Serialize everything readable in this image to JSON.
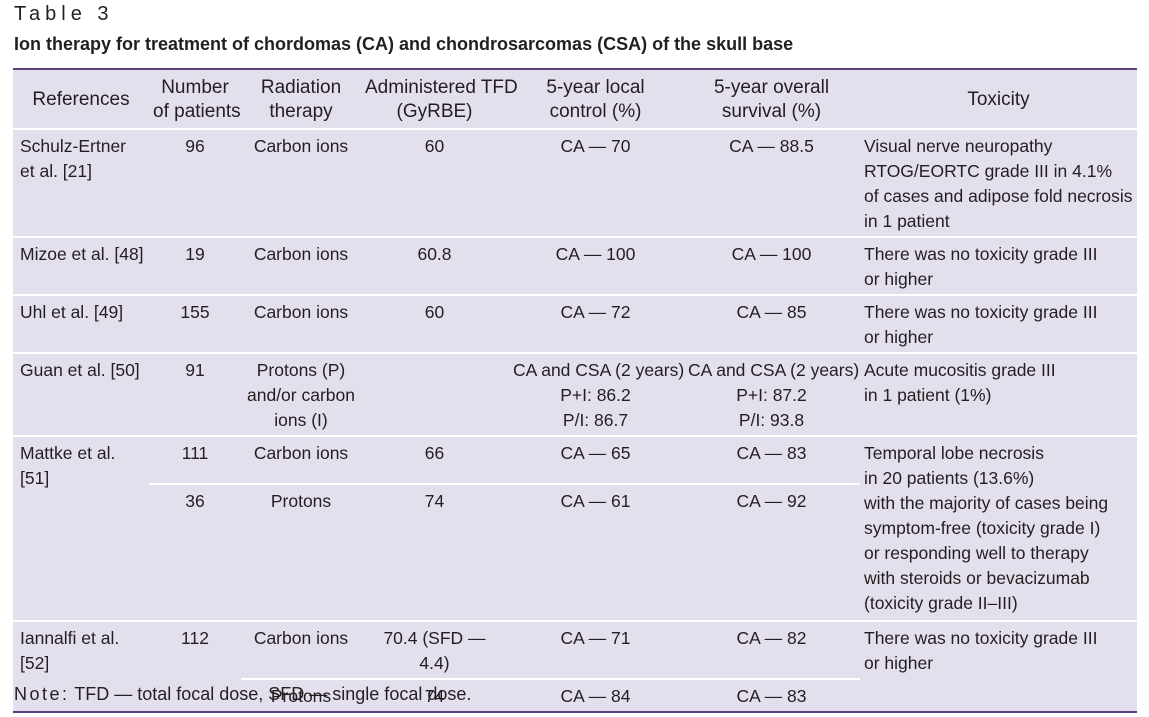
{
  "label": "Table 3",
  "title": "Ion therapy for treatment of chordomas (CA) and chondrosarcomas (CSA) of the skull base",
  "headers": [
    [
      "References"
    ],
    [
      "Number",
      "of patients"
    ],
    [
      "Radiation",
      "therapy"
    ],
    [
      "Administered TFD",
      "(GyRBE)"
    ],
    [
      "5-year local",
      "control (%)"
    ],
    [
      "5-year overall",
      "survival (%)"
    ],
    [
      "Toxicity"
    ]
  ],
  "rows": [
    {
      "ref": [
        "Schulz-Ertner",
        "et al. [21]"
      ],
      "n": "96",
      "rt": [
        "Carbon ions"
      ],
      "tfd": "60",
      "lc": [
        "CA — 70"
      ],
      "os": [
        "CA — 88.5"
      ],
      "tox": [
        "Visual nerve neuropathy",
        "RTOG/EORTC grade III in 4.1%",
        "of cases and adipose fold necrosis",
        "in 1 patient"
      ]
    },
    {
      "ref": [
        "Mizoe et al. [48]"
      ],
      "n": "19",
      "rt": [
        "Carbon ions"
      ],
      "tfd": "60.8",
      "lc": [
        "CA — 100"
      ],
      "os": [
        "CA — 100"
      ],
      "tox": [
        "There was no toxicity grade III",
        "or higher"
      ]
    },
    {
      "ref": [
        "Uhl et al. [49]"
      ],
      "n": "155",
      "rt": [
        "Carbon ions"
      ],
      "tfd": "60",
      "lc": [
        "CA — 72"
      ],
      "os": [
        "CA — 85"
      ],
      "tox": [
        "There was no toxicity grade III",
        "or higher"
      ]
    },
    {
      "ref": [
        "Guan et al. [50]"
      ],
      "n": "91",
      "rt": [
        "Protons (P)",
        "and/or carbon",
        "ions (I)"
      ],
      "tfd": "",
      "lc": [
        "CA and CSA (2 years)",
        "P+I: 86.2",
        "P/I: 86.7"
      ],
      "os": [
        "CA and CSA (2 years)",
        "P+I: 87.2",
        "P/I: 93.8"
      ],
      "tox": [
        "Acute mucositis grade III",
        "in 1 patient (1%)"
      ]
    }
  ],
  "mattke": {
    "ref": "Mattke et al. [51]",
    "sub": [
      {
        "n": "111",
        "rt": "Carbon ions",
        "tfd": "66",
        "lc": "CA — 65",
        "os": "CA — 83"
      },
      {
        "n": "36",
        "rt": "Protons",
        "tfd": "74",
        "lc": "CA — 61",
        "os": "CA — 92"
      }
    ],
    "tox": [
      "Temporal lobe necrosis",
      "in 20 patients (13.6%)",
      "with the majority of cases being",
      "symptom-free (toxicity grade I)",
      "or responding well to therapy",
      "with steroids or bevacizumab",
      "(toxicity grade II–III)"
    ]
  },
  "iannalfi": {
    "ref": "Iannalfi et al. [52]",
    "n": "112",
    "sub": [
      {
        "rt": "Carbon ions",
        "tfd": "70.4 (SFD — 4.4)",
        "lc": "CA — 71",
        "os": "CA — 82"
      },
      {
        "rt": "Protons",
        "tfd": "74",
        "lc": "CA — 84",
        "os": "CA — 83"
      }
    ],
    "tox": [
      "There was no toxicity grade III",
      "or higher"
    ]
  },
  "note": {
    "key": "Note:",
    "text": " TFD — total focal dose, SFD — single focal dose."
  }
}
